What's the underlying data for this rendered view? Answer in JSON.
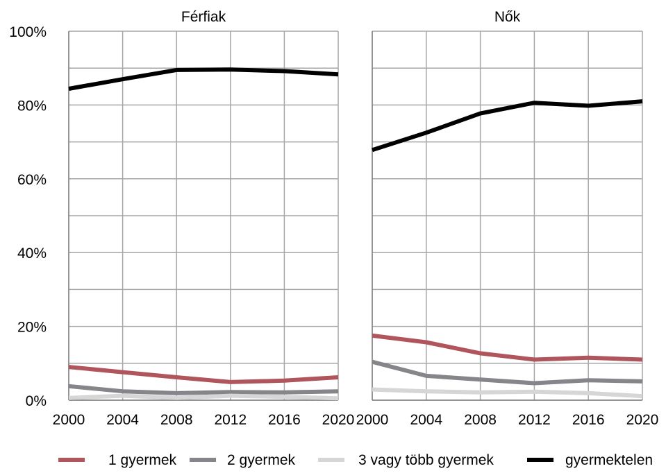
{
  "chart_data": {
    "type": "line",
    "x": [
      2000,
      2004,
      2008,
      2012,
      2016,
      2020
    ],
    "ylim": [
      0,
      100
    ],
    "y_ticks": [
      "0%",
      "20%",
      "40%",
      "60%",
      "80%",
      "100%"
    ],
    "x_ticks": [
      "2000",
      "2004",
      "2008",
      "2012",
      "2016",
      "2020"
    ],
    "grid": true,
    "legend_position": "bottom",
    "colors": {
      "1 gyermek": "#b0555b",
      "2 gyermek": "#86868a",
      "3 vagy több gyermek": "#d6d6d6",
      "gyermektelen": "#000000"
    },
    "panels": [
      {
        "title": "Férfiak",
        "series": [
          {
            "name": "1 gyermek",
            "values": [
              9.0,
              7.6,
              6.2,
              4.9,
              5.3,
              6.2
            ]
          },
          {
            "name": "2 gyermek",
            "values": [
              3.8,
              2.4,
              1.9,
              2.2,
              2.1,
              2.4
            ]
          },
          {
            "name": "3 vagy több gyermek",
            "values": [
              0.6,
              1.2,
              0.6,
              1.2,
              0.9,
              0.5
            ]
          },
          {
            "name": "gyermektelen",
            "values": [
              84.4,
              87.0,
              89.5,
              89.6,
              89.2,
              88.3
            ]
          }
        ]
      },
      {
        "title": "Nők",
        "series": [
          {
            "name": "1 gyermek",
            "values": [
              17.5,
              15.7,
              12.7,
              11.0,
              11.5,
              11.0
            ]
          },
          {
            "name": "2 gyermek",
            "values": [
              10.4,
              6.6,
              5.6,
              4.6,
              5.4,
              5.1
            ]
          },
          {
            "name": "3 vagy több gyermek",
            "values": [
              2.9,
              2.4,
              2.1,
              2.3,
              1.9,
              1.1
            ]
          },
          {
            "name": "gyermektelen",
            "values": [
              67.8,
              72.5,
              77.7,
              80.6,
              79.8,
              81.0
            ]
          }
        ]
      }
    ],
    "legend": [
      "1 gyermek",
      "2 gyermek",
      "3 vagy több gyermek",
      "gyermektelen"
    ]
  }
}
